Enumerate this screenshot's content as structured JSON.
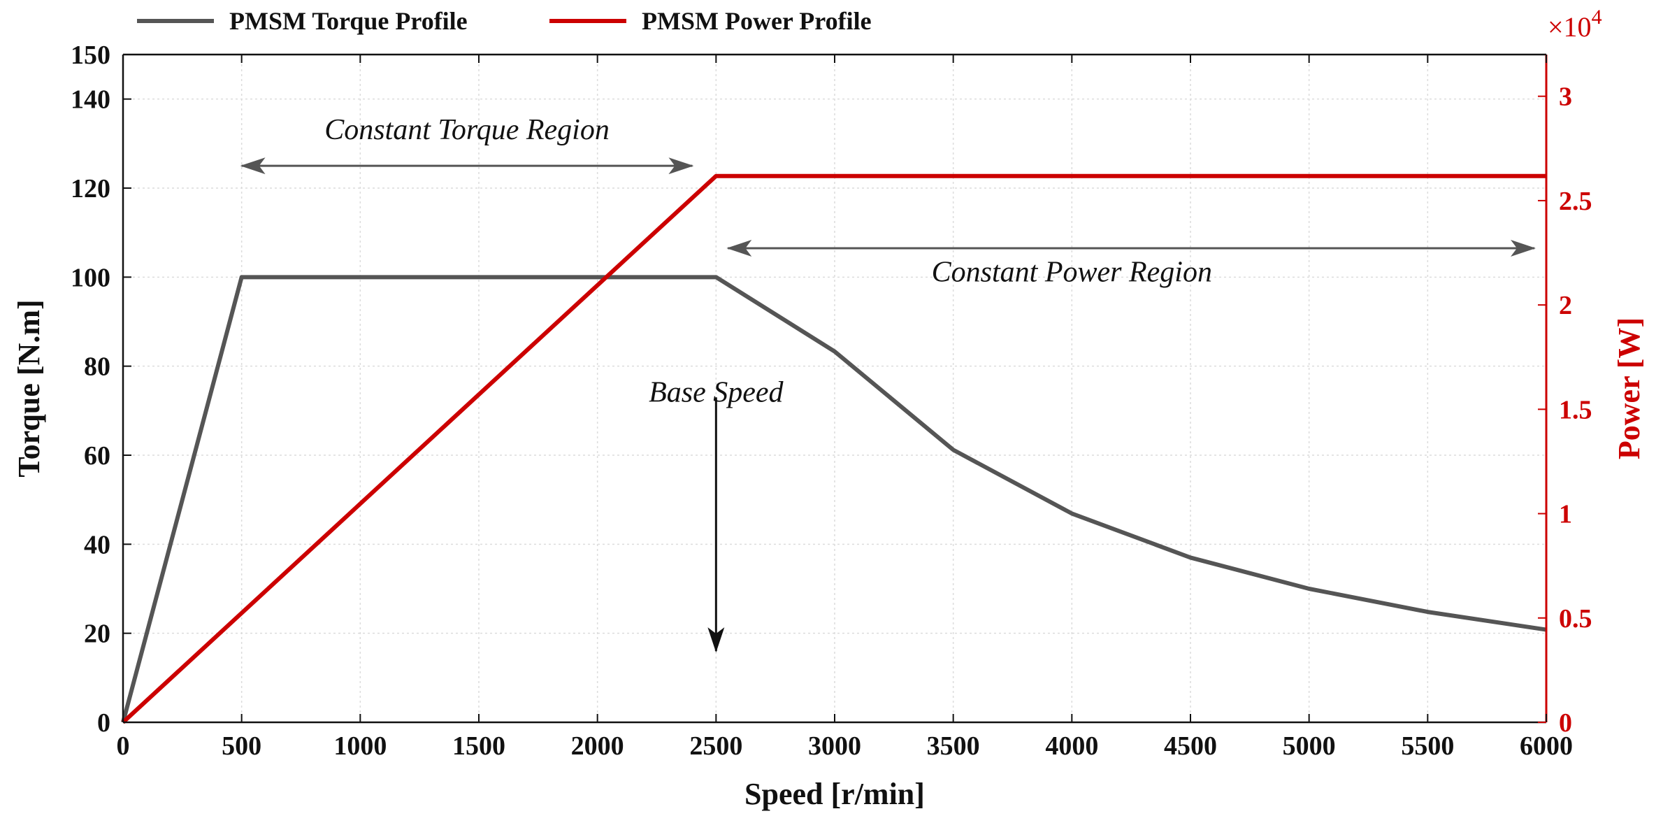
{
  "chart_data": {
    "type": "line",
    "x": [
      0,
      500,
      1000,
      1500,
      2000,
      2500,
      3000,
      3500,
      4000,
      4500,
      5000,
      5500,
      6000
    ],
    "xlabel": "Speed [r/min]",
    "ylabel": "Torque [N.m]",
    "y2label": "Power [W]",
    "xlim": [
      0,
      6000
    ],
    "ylim": [
      0,
      150
    ],
    "y2lim": [
      0,
      32000
    ],
    "xticks": [
      0,
      500,
      1000,
      1500,
      2000,
      2500,
      3000,
      3500,
      4000,
      4500,
      5000,
      5500,
      6000
    ],
    "yticks": [
      0,
      20,
      40,
      60,
      80,
      100,
      120,
      140,
      150
    ],
    "y2ticks": [
      0,
      5000,
      10000,
      15000,
      20000,
      25000,
      30000
    ],
    "y2tick_labels": [
      "0",
      "0.5",
      "1",
      "1.5",
      "2",
      "2.5",
      "3"
    ],
    "y2_multiplier_base": "×10",
    "y2_multiplier_exp": "4",
    "grid": true,
    "legend_position": "top",
    "series": [
      {
        "name": "PMSM Torque Profile",
        "axis": "left",
        "color": "#555555",
        "x": [
          0,
          500,
          1000,
          1500,
          2000,
          2500,
          3000,
          3500,
          4000,
          4500,
          5000,
          5500,
          6000
        ],
        "values": [
          0,
          100,
          100,
          100,
          100,
          100,
          83.3,
          61.2,
          46.9,
          37.0,
          30.0,
          24.8,
          20.8
        ]
      },
      {
        "name": "PMSM Power Profile",
        "axis": "right",
        "color": "#cc0000",
        "x": [
          0,
          2500,
          3000,
          3500,
          4000,
          4500,
          5000,
          5500,
          6000
        ],
        "values": [
          0,
          26180,
          26180,
          26180,
          26180,
          26180,
          26180,
          26180,
          26180
        ]
      }
    ],
    "annotations": [
      {
        "text": "Constant Torque Region",
        "arrow": "double",
        "from_x": 500,
        "to_x": 2400,
        "at_y": 125,
        "text_x": 1450,
        "text_y": 131
      },
      {
        "text": "Constant Power Region",
        "arrow": "double",
        "from_x": 2550,
        "to_x": 5950,
        "at_y": 106.5,
        "text_x": 4000,
        "text_y": 99
      },
      {
        "text": "Base Speed",
        "arrow": "down",
        "from_y": 73,
        "to_y": 16,
        "at_x": 2500,
        "text_x": 2500,
        "text_y": 72
      }
    ],
    "arrow_color": "#555555"
  }
}
